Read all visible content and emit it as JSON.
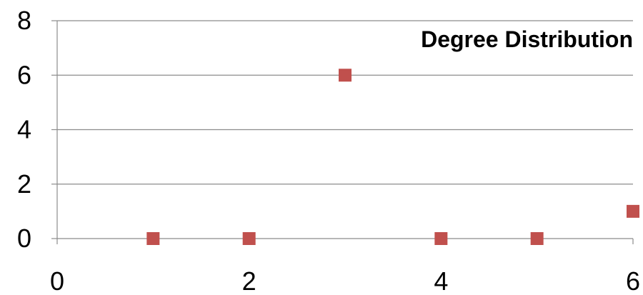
{
  "chart_data": {
    "type": "scatter",
    "title": "Degree Distribution",
    "xlabel": "",
    "ylabel": "",
    "xlim": [
      0,
      6
    ],
    "ylim": [
      0,
      8
    ],
    "x_ticks": [
      0,
      2,
      4,
      6
    ],
    "y_ticks": [
      0,
      2,
      4,
      6,
      8
    ],
    "grid": "horizontal",
    "series": [
      {
        "marker": "square",
        "color": "#c0504d",
        "points": [
          {
            "x": 1,
            "y": 0
          },
          {
            "x": 2,
            "y": 0
          },
          {
            "x": 3,
            "y": 6
          },
          {
            "x": 4,
            "y": 0
          },
          {
            "x": 5,
            "y": 0
          },
          {
            "x": 6,
            "y": 1
          }
        ]
      }
    ]
  }
}
